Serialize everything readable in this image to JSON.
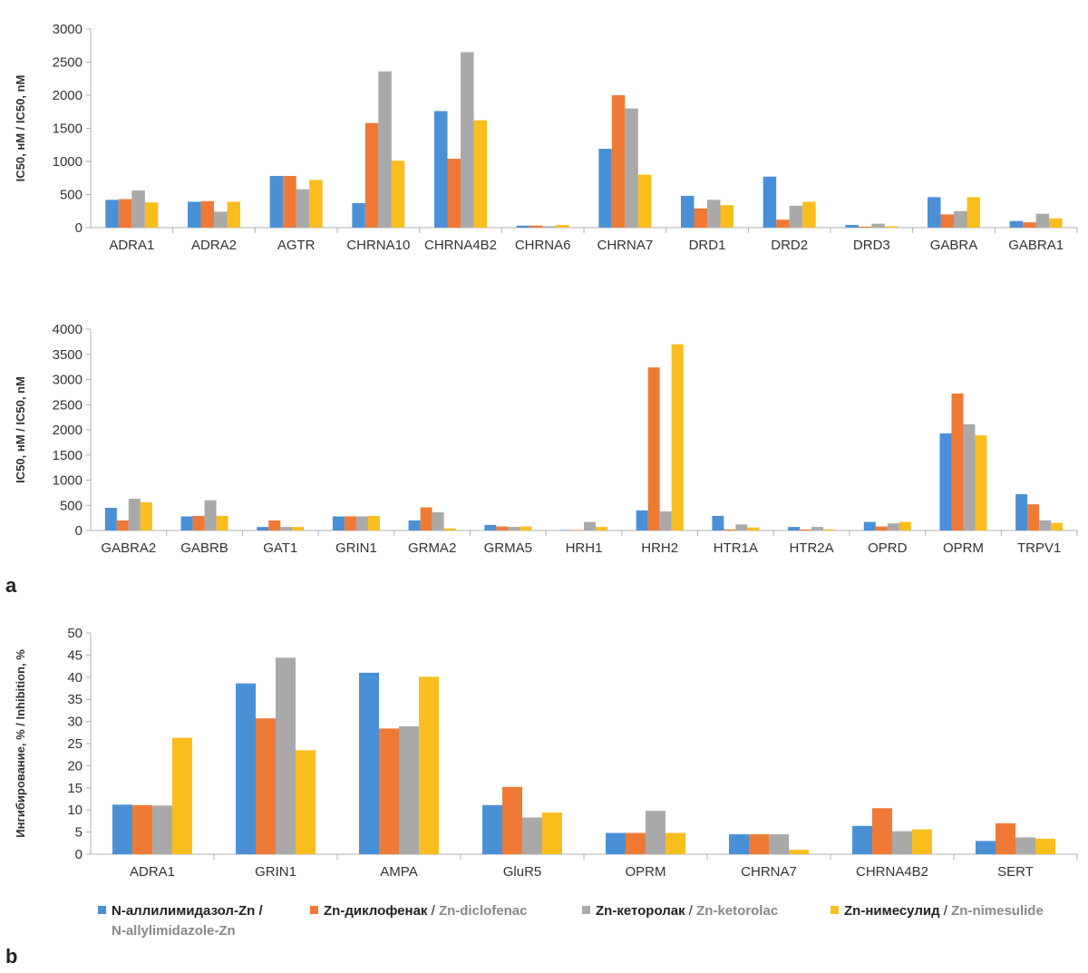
{
  "colors": {
    "series": [
      "#4a90d6",
      "#ee7a36",
      "#a9a9a9",
      "#f9bd1e"
    ]
  },
  "panel_labels": {
    "a": "a",
    "b": "b"
  },
  "legend": [
    {
      "ru": "N-аллилимидазол-Zn /",
      "en": "N-allylimidazole-Zn",
      "sep": ""
    },
    {
      "ru": "Zn-диклофенак",
      "sep": " / ",
      "en": "Zn-diclofenac"
    },
    {
      "ru": "Zn-кеторолак",
      "sep": " / ",
      "en": "Zn-ketorolac"
    },
    {
      "ru": "Zn-нимесулид",
      "sep": " / ",
      "en": "Zn-nimesulide"
    }
  ],
  "chart_data": [
    {
      "type": "bar",
      "ylabel": "IC50, нМ / IC50, nM",
      "ylim": [
        0,
        3000
      ],
      "yticks": [
        0,
        500,
        1000,
        1500,
        2000,
        2500,
        3000
      ],
      "categories": [
        "ADRA1",
        "ADRA2",
        "AGTR",
        "CHRNA10",
        "CHRNA4B2",
        "CHRNA6",
        "CHRNA7",
        "DRD1",
        "DRD2",
        "DRD3",
        "GABRA",
        "GABRA1"
      ],
      "series": [
        {
          "name": "N-allylimidazole-Zn",
          "values": [
            420,
            390,
            780,
            370,
            1760,
            30,
            1190,
            480,
            770,
            40,
            460,
            100
          ]
        },
        {
          "name": "Zn-diclofenac",
          "values": [
            430,
            400,
            780,
            1580,
            1040,
            30,
            2000,
            290,
            120,
            15,
            200,
            80
          ]
        },
        {
          "name": "Zn-ketorolac",
          "values": [
            560,
            240,
            580,
            2360,
            2650,
            20,
            1800,
            420,
            330,
            60,
            250,
            210
          ]
        },
        {
          "name": "Zn-nimesulide",
          "values": [
            380,
            390,
            720,
            1010,
            1620,
            40,
            800,
            340,
            390,
            20,
            460,
            140
          ]
        }
      ]
    },
    {
      "type": "bar",
      "ylabel": "IC50, нМ / IC50, nM",
      "ylim": [
        0,
        4000
      ],
      "yticks": [
        0,
        500,
        1000,
        1500,
        2000,
        2500,
        3000,
        3500,
        4000
      ],
      "categories": [
        "GABRA2",
        "GABRB",
        "GAT1",
        "GRIN1",
        "GRMA2",
        "GRMA5",
        "HRH1",
        "HRH2",
        "HTR1A",
        "HTR2A",
        "OPRD",
        "OPRM",
        "TRPV1"
      ],
      "series": [
        {
          "name": "N-allylimidazole-Zn",
          "values": [
            450,
            280,
            70,
            280,
            200,
            110,
            10,
            400,
            290,
            70,
            170,
            1930,
            720
          ]
        },
        {
          "name": "Zn-diclofenac",
          "values": [
            200,
            290,
            200,
            280,
            460,
            80,
            10,
            3240,
            20,
            20,
            80,
            2720,
            520
          ]
        },
        {
          "name": "Zn-ketorolac",
          "values": [
            630,
            600,
            70,
            280,
            360,
            70,
            170,
            380,
            120,
            70,
            140,
            2110,
            200
          ]
        },
        {
          "name": "Zn-nimesulide",
          "values": [
            560,
            290,
            70,
            290,
            40,
            80,
            70,
            3700,
            60,
            20,
            170,
            1890,
            150
          ]
        }
      ]
    },
    {
      "type": "bar",
      "ylabel": "Ингибирование, % / Inhibition, %",
      "ylim": [
        0,
        50
      ],
      "yticks": [
        0,
        5,
        10,
        15,
        20,
        25,
        30,
        35,
        40,
        45,
        50
      ],
      "categories": [
        "ADRA1",
        "GRIN1",
        "AMPA",
        "GluR5",
        "OPRM",
        "CHRNA7",
        "CHRNA4B2",
        "SERT"
      ],
      "series": [
        {
          "name": "N-allylimidazole-Zn",
          "values": [
            11.2,
            38.6,
            41.0,
            11.1,
            4.8,
            4.5,
            6.4,
            3.0
          ]
        },
        {
          "name": "Zn-diclofenac",
          "values": [
            11.1,
            30.7,
            28.4,
            15.2,
            4.8,
            4.5,
            10.4,
            7.0
          ]
        },
        {
          "name": "Zn-ketorolac",
          "values": [
            11.0,
            44.4,
            28.9,
            8.3,
            9.8,
            4.5,
            5.2,
            3.8
          ]
        },
        {
          "name": "Zn-nimesulide",
          "values": [
            26.3,
            23.5,
            40.1,
            9.4,
            4.8,
            1.0,
            5.6,
            3.5
          ]
        }
      ]
    }
  ]
}
